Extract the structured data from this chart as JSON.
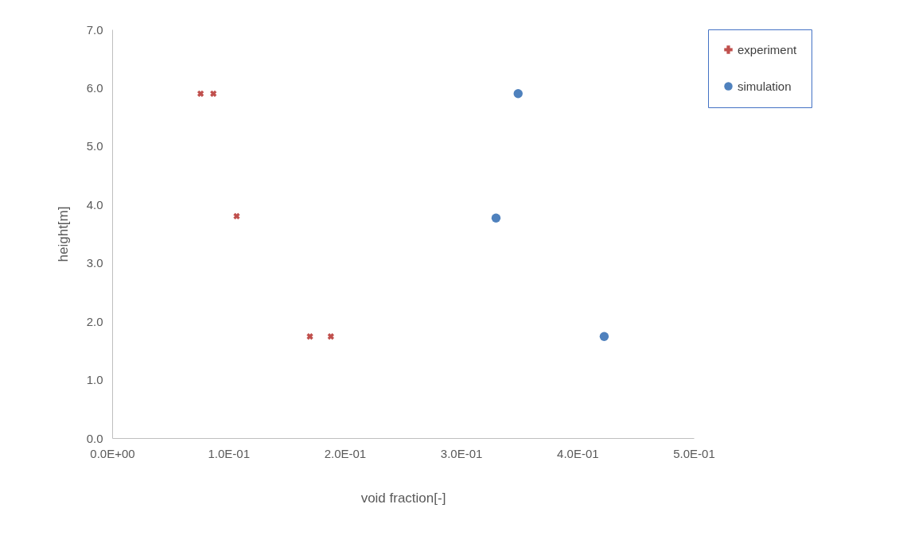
{
  "chart_data": {
    "type": "scatter",
    "xlabel": "void fraction[-]",
    "ylabel": "height[m]",
    "xlim": [
      0,
      0.5
    ],
    "ylim": [
      0,
      7
    ],
    "xticks": [
      {
        "value": 0,
        "label": "0.0E+00"
      },
      {
        "value": 0.1,
        "label": "1.0E-01"
      },
      {
        "value": 0.2,
        "label": "2.0E-01"
      },
      {
        "value": 0.3,
        "label": "3.0E-01"
      },
      {
        "value": 0.4,
        "label": "4.0E-01"
      },
      {
        "value": 0.5,
        "label": "5.0E-01"
      }
    ],
    "yticks": [
      {
        "value": 0,
        "label": "0.0"
      },
      {
        "value": 1,
        "label": "1.0"
      },
      {
        "value": 2,
        "label": "2.0"
      },
      {
        "value": 3,
        "label": "3.0"
      },
      {
        "value": 4,
        "label": "4.0"
      },
      {
        "value": 5,
        "label": "5.0"
      },
      {
        "value": 6,
        "label": "6.0"
      },
      {
        "value": 7,
        "label": "7.0"
      }
    ],
    "grid": false,
    "legend": "top right",
    "series": [
      {
        "name": "experiment",
        "color": "#c0504d",
        "marker": "cross",
        "x": [
          0.076,
          0.087,
          0.107,
          0.17,
          0.188
        ],
        "values": [
          5.9,
          5.9,
          3.8,
          1.74,
          1.74
        ]
      },
      {
        "name": "simulation",
        "color": "#4f81bd",
        "marker": "circle",
        "x": [
          0.349,
          0.33,
          0.423
        ],
        "values": [
          5.9,
          3.77,
          1.74
        ]
      }
    ]
  }
}
